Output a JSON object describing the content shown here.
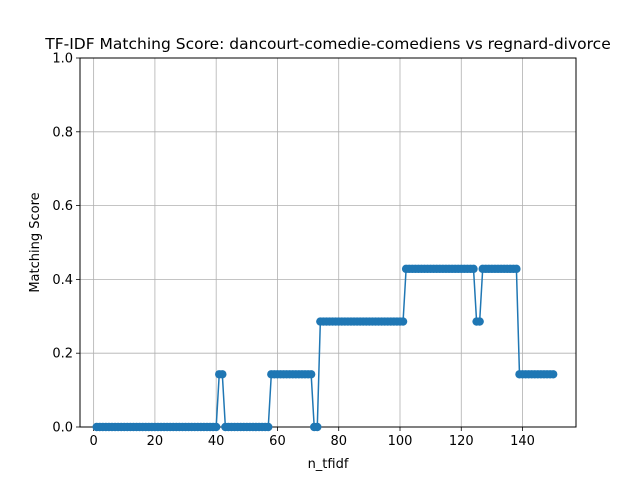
{
  "chart_data": {
    "type": "line",
    "title": "TF-IDF Matching Score: dancourt-comedie-comediens vs regnard-divorce",
    "xlabel": "n_tfidf",
    "ylabel": "Matching Score",
    "xlim": [
      -4.45,
      157.45
    ],
    "ylim": [
      0,
      1
    ],
    "xticks": [
      0,
      20,
      40,
      60,
      80,
      100,
      120,
      140
    ],
    "yticks": [
      0.0,
      0.2,
      0.4,
      0.6,
      0.8,
      1.0
    ],
    "xtick_labels": [
      "0",
      "20",
      "40",
      "60",
      "80",
      "100",
      "120",
      "140"
    ],
    "ytick_labels": [
      "0.0",
      "0.2",
      "0.4",
      "0.6",
      "0.8",
      "1.0"
    ],
    "grid": true,
    "color": "#1f77b4",
    "marker": "circle",
    "series": [
      {
        "segments": [
          [
            1,
            40,
            0.0
          ],
          [
            41,
            42,
            0.1429
          ],
          [
            43,
            57,
            0.0
          ],
          [
            58,
            71,
            0.1429
          ],
          [
            72,
            73,
            0.0
          ],
          [
            74,
            101,
            0.2857
          ],
          [
            102,
            124,
            0.4286
          ],
          [
            125,
            126,
            0.2857
          ],
          [
            127,
            138,
            0.4286
          ],
          [
            139,
            150,
            0.1429
          ]
        ]
      }
    ]
  }
}
